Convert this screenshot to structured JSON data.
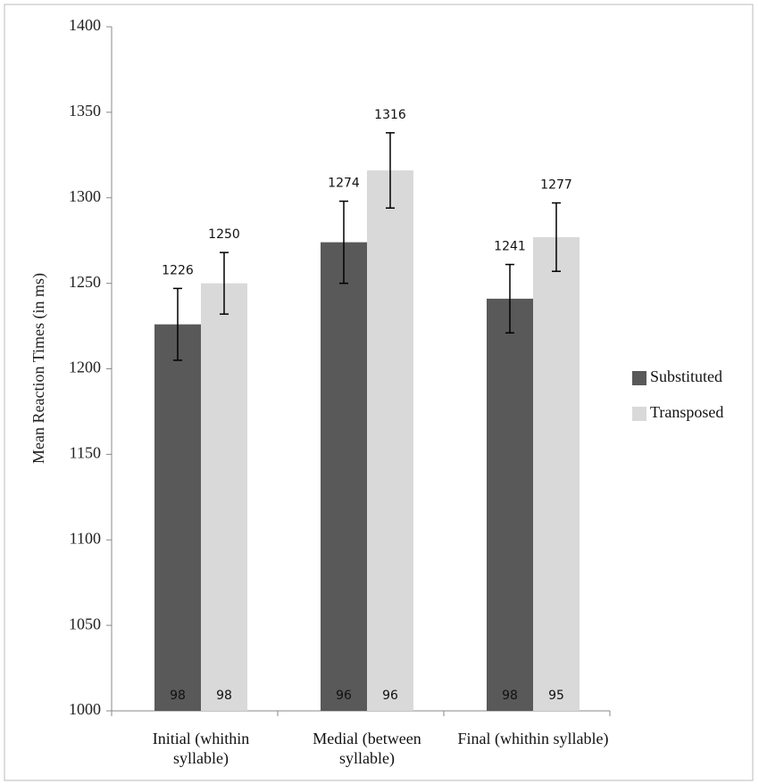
{
  "chart_data": {
    "type": "bar",
    "y_label": "Mean Reaction Times (in ms)",
    "categories": [
      "Initial (whithin syllable)",
      "Medial (between syllable)",
      "Final (whithin syllable)"
    ],
    "series": [
      {
        "name": "Substituted",
        "color": "#595959",
        "values": [
          1226,
          1274,
          1241
        ],
        "errors": [
          21,
          24,
          20
        ],
        "bottom_labels": [
          98,
          96,
          98
        ]
      },
      {
        "name": "Transposed",
        "color": "#d9d9d9",
        "values": [
          1250,
          1316,
          1277
        ],
        "errors": [
          18,
          22,
          20
        ],
        "bottom_labels": [
          98,
          96,
          95
        ]
      }
    ],
    "ylim": [
      1000,
      1400
    ],
    "yticks": [
      1000,
      1050,
      1100,
      1150,
      1200,
      1250,
      1300,
      1350,
      1400
    ],
    "legend": "right"
  }
}
